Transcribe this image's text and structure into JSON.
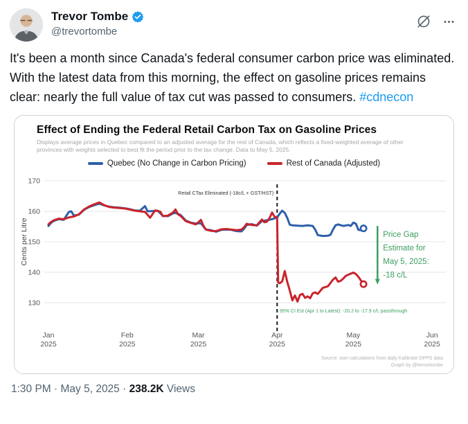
{
  "header": {
    "display_name": "Trevor Tombe",
    "handle": "@trevortombe",
    "verified_color": "#1d9bf0"
  },
  "tweet": {
    "text": "It's been a month since Canada's federal consumer carbon price was eliminated. With the latest data from this morning, the effect on gasoline prices remains clear: nearly the full value of tax cut was passed to consumers. ",
    "hashtag": "#cdnecon"
  },
  "chart": {
    "title": "Effect of Ending the Federal Retail Carbon Tax on Gasoline Prices",
    "subtitle": "Displays average prices in Quebec compared to an adjusted average for the rest of Canada, which reflects a fixed-weighted average of other provinces with weights selected to best fit the period prior to the tax change. Data to May 5, 2025."
  },
  "chart_data": {
    "type": "line",
    "title": "Effect of Ending the Federal Retail Carbon Tax on Gasoline Prices",
    "xlabel": "",
    "ylabel": "Cents per Litre",
    "ylim": [
      127,
      172
    ],
    "yticks": [
      130,
      140,
      150,
      160,
      170
    ],
    "grid": "horizontal",
    "legend_position": "top-center",
    "xticks": [
      {
        "label": "Jan",
        "year": "2025",
        "day": 0
      },
      {
        "label": "Feb",
        "year": "2025",
        "day": 31
      },
      {
        "label": "Mar",
        "year": "2025",
        "day": 59
      },
      {
        "label": "Apr",
        "year": "2025",
        "day": 90
      },
      {
        "label": "May",
        "year": "2025",
        "day": 120
      },
      {
        "label": "Jun",
        "year": "2025",
        "day": 151
      }
    ],
    "series": [
      {
        "name": "Quebec (No Change in Carbon Pricing)",
        "color": "#2d5fa9",
        "points": [
          [
            0,
            155.2
          ],
          [
            1,
            156.2
          ],
          [
            2,
            156.8
          ],
          [
            4,
            157.4
          ],
          [
            6,
            157.2
          ],
          [
            8,
            159.8
          ],
          [
            9,
            160.0
          ],
          [
            10,
            158.6
          ],
          [
            12,
            158.9
          ],
          [
            14,
            160.5
          ],
          [
            16,
            161.4
          ],
          [
            18,
            162.0
          ],
          [
            20,
            162.5
          ],
          [
            22,
            161.9
          ],
          [
            24,
            161.5
          ],
          [
            26,
            161.3
          ],
          [
            28,
            161.2
          ],
          [
            30,
            161.0
          ],
          [
            32,
            160.7
          ],
          [
            34,
            160.3
          ],
          [
            36,
            160.2
          ],
          [
            38,
            161.7
          ],
          [
            39,
            160.0
          ],
          [
            41,
            160.1
          ],
          [
            43,
            160.2
          ],
          [
            45,
            158.5
          ],
          [
            47,
            158.4
          ],
          [
            49,
            159.3
          ],
          [
            50,
            159.5
          ],
          [
            52,
            158.8
          ],
          [
            54,
            157.0
          ],
          [
            56,
            156.3
          ],
          [
            58,
            156.0
          ],
          [
            60,
            156.1
          ],
          [
            61,
            155.0
          ],
          [
            62,
            154.0
          ],
          [
            64,
            153.8
          ],
          [
            66,
            153.3
          ],
          [
            68,
            153.9
          ],
          [
            70,
            154.0
          ],
          [
            72,
            153.9
          ],
          [
            74,
            153.5
          ],
          [
            76,
            153.4
          ],
          [
            77,
            154.3
          ],
          [
            78,
            155.5
          ],
          [
            80,
            155.8
          ],
          [
            82,
            155.3
          ],
          [
            84,
            156.8
          ],
          [
            86,
            157.1
          ],
          [
            88,
            157.4
          ],
          [
            90,
            158.0
          ],
          [
            91,
            159.2
          ],
          [
            92,
            160.2
          ],
          [
            93,
            159.5
          ],
          [
            94,
            157.8
          ],
          [
            95,
            155.6
          ],
          [
            96,
            155.4
          ],
          [
            98,
            155.3
          ],
          [
            100,
            155.2
          ],
          [
            102,
            155.4
          ],
          [
            104,
            155.2
          ],
          [
            105,
            154.0
          ],
          [
            106,
            152.2
          ],
          [
            108,
            151.9
          ],
          [
            110,
            152.0
          ],
          [
            111,
            152.3
          ],
          [
            112,
            154.0
          ],
          [
            113,
            155.4
          ],
          [
            114,
            155.7
          ],
          [
            116,
            155.2
          ],
          [
            118,
            155.5
          ],
          [
            119,
            155.2
          ],
          [
            120,
            156.3
          ],
          [
            121,
            155.9
          ],
          [
            122,
            153.9
          ],
          [
            123,
            153.8
          ],
          [
            124,
            154.4
          ]
        ]
      },
      {
        "name": "Rest of Canada (Adjusted)",
        "color": "#c9242b",
        "points": [
          [
            0,
            155.7
          ],
          [
            1,
            156.5
          ],
          [
            2,
            157.0
          ],
          [
            4,
            157.6
          ],
          [
            6,
            157.4
          ],
          [
            8,
            158.0
          ],
          [
            10,
            158.3
          ],
          [
            12,
            159.0
          ],
          [
            14,
            160.6
          ],
          [
            16,
            161.6
          ],
          [
            18,
            162.3
          ],
          [
            20,
            162.9
          ],
          [
            22,
            162.0
          ],
          [
            24,
            161.4
          ],
          [
            26,
            161.2
          ],
          [
            28,
            161.1
          ],
          [
            30,
            160.9
          ],
          [
            32,
            160.6
          ],
          [
            34,
            160.2
          ],
          [
            36,
            160.0
          ],
          [
            38,
            159.8
          ],
          [
            40,
            157.9
          ],
          [
            42,
            160.3
          ],
          [
            44,
            159.9
          ],
          [
            45,
            158.4
          ],
          [
            47,
            158.6
          ],
          [
            49,
            159.6
          ],
          [
            50,
            160.6
          ],
          [
            51,
            159.0
          ],
          [
            52,
            158.5
          ],
          [
            54,
            156.8
          ],
          [
            56,
            156.2
          ],
          [
            58,
            155.7
          ],
          [
            59,
            156.4
          ],
          [
            60,
            157.2
          ],
          [
            61,
            155.2
          ],
          [
            62,
            154.0
          ],
          [
            64,
            153.6
          ],
          [
            66,
            153.5
          ],
          [
            68,
            154.1
          ],
          [
            70,
            154.2
          ],
          [
            72,
            154.0
          ],
          [
            74,
            153.8
          ],
          [
            76,
            154.0
          ],
          [
            77,
            154.8
          ],
          [
            78,
            155.9
          ],
          [
            80,
            155.5
          ],
          [
            82,
            155.4
          ],
          [
            84,
            157.3
          ],
          [
            85,
            156.4
          ],
          [
            86,
            156.6
          ],
          [
            87,
            157.8
          ],
          [
            88,
            159.6
          ],
          [
            89,
            158.2
          ],
          [
            90,
            157.9
          ],
          [
            90.4,
            136.6
          ],
          [
            91,
            136.4
          ],
          [
            92,
            137.0
          ],
          [
            93,
            140.4
          ],
          [
            94,
            136.8
          ],
          [
            95,
            134.0
          ],
          [
            96,
            130.8
          ],
          [
            97,
            132.4
          ],
          [
            98,
            130.4
          ],
          [
            99,
            132.6
          ],
          [
            100,
            132.9
          ],
          [
            101,
            131.6
          ],
          [
            102,
            132.1
          ],
          [
            103,
            131.5
          ],
          [
            104,
            133.1
          ],
          [
            105,
            133.4
          ],
          [
            106,
            132.9
          ],
          [
            108,
            134.9
          ],
          [
            110,
            135.4
          ],
          [
            112,
            137.6
          ],
          [
            113,
            138.3
          ],
          [
            114,
            136.9
          ],
          [
            115,
            137.2
          ],
          [
            116,
            137.9
          ],
          [
            117,
            138.8
          ],
          [
            118,
            139.2
          ],
          [
            120,
            139.9
          ],
          [
            121,
            139.4
          ],
          [
            122,
            138.5
          ],
          [
            124,
            136.1
          ]
        ]
      }
    ],
    "event_line": {
      "day": 90,
      "label": "Retail CTax Eliminated (-18c/L + GST/HST)",
      "color": "#1a1a1a",
      "style": "dashed"
    },
    "gap_annotation": {
      "day": 129.5,
      "from": 155.2,
      "to": 136.0,
      "color": "#3d9e60",
      "lines": [
        "Price Gap",
        "Estimate for",
        "May 5, 2025:",
        "-18 c/L"
      ]
    },
    "ci_note": {
      "text": "95% CI Est (Apr 1 to Latest):  -20.2 to -17.9 c/L passthrough",
      "color": "#3d9e60"
    },
    "source": [
      "Source: own calculations from daily Kalibrate DPPS data",
      "Graph by @trevortombe"
    ]
  },
  "footer": {
    "timestamp": "1:30 PM · May 5, 2025",
    "separator": " · ",
    "views_count": "238.2K",
    "views_label": " Views"
  }
}
